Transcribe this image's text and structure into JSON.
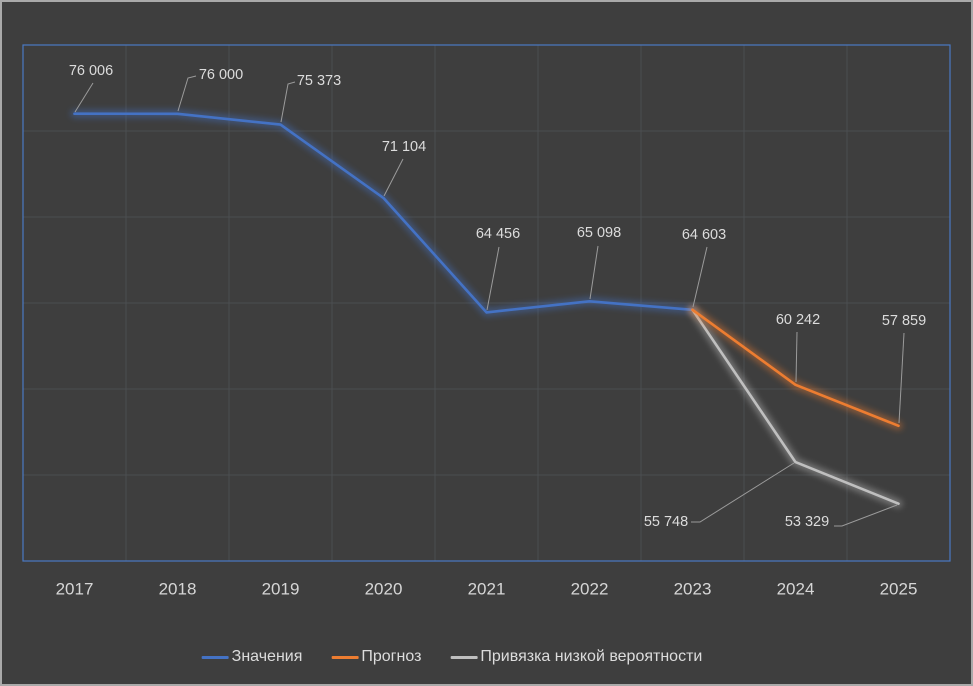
{
  "window": {
    "background_color": "#3e3e3e",
    "frame_border_color": "#a9a9a9",
    "plot_border_color": "#4a79c4",
    "gridline_color": "#4b4e50",
    "leader_line_color": "#9b9b9b",
    "label_text_color": "#dcdcdc",
    "axis_text_color": "#d6d6d6"
  },
  "chart_data": {
    "type": "line",
    "title": "",
    "xlabel": "",
    "ylabel": "",
    "grid": true,
    "legend_position": "bottom",
    "categories": [
      "2017",
      "2018",
      "2019",
      "2020",
      "2021",
      "2022",
      "2023",
      "2024",
      "2025"
    ],
    "ylim": [
      50000,
      80000
    ],
    "y_grid_step": 5000,
    "series": [
      {
        "name": "Значения",
        "color": "#4472c4",
        "start_index": 0,
        "x": [
          "2017",
          "2018",
          "2019",
          "2020",
          "2021",
          "2022",
          "2023"
        ],
        "values": [
          76006,
          76000,
          75373,
          71104,
          64456,
          65098,
          64603
        ]
      },
      {
        "name": "Привязка низкой вероятности",
        "color": "#bfbfbf",
        "start_index": 6,
        "x": [
          "2023",
          "2024",
          "2025"
        ],
        "values": [
          64603,
          55748,
          53329
        ]
      },
      {
        "name": "Прогноз",
        "color": "#ed7d31",
        "start_index": 6,
        "x": [
          "2023",
          "2024",
          "2025"
        ],
        "values": [
          64603,
          60242,
          57859
        ]
      }
    ],
    "point_labels": [
      {
        "series": "Значения",
        "category": "2017",
        "text": "76 006"
      },
      {
        "series": "Значения",
        "category": "2018",
        "text": "76 000"
      },
      {
        "series": "Значения",
        "category": "2019",
        "text": "75 373"
      },
      {
        "series": "Значения",
        "category": "2020",
        "text": "71 104"
      },
      {
        "series": "Значения",
        "category": "2021",
        "text": "64 456"
      },
      {
        "series": "Значения",
        "category": "2022",
        "text": "65 098"
      },
      {
        "series": "Значения",
        "category": "2023",
        "text": "64 603"
      },
      {
        "series": "Прогноз",
        "category": "2024",
        "text": "60 242"
      },
      {
        "series": "Прогноз",
        "category": "2025",
        "text": "57 859"
      },
      {
        "series": "Привязка низкой вероятности",
        "category": "2024",
        "text": "55 748"
      },
      {
        "series": "Привязка низкой вероятности",
        "category": "2025",
        "text": "53 329"
      }
    ]
  },
  "legend": {
    "items": [
      {
        "label": "Значения",
        "color": "#4472c4"
      },
      {
        "label": "Прогноз",
        "color": "#ed7d31"
      },
      {
        "label": "Привязка низкой вероятности",
        "color": "#bfbfbf"
      }
    ]
  }
}
